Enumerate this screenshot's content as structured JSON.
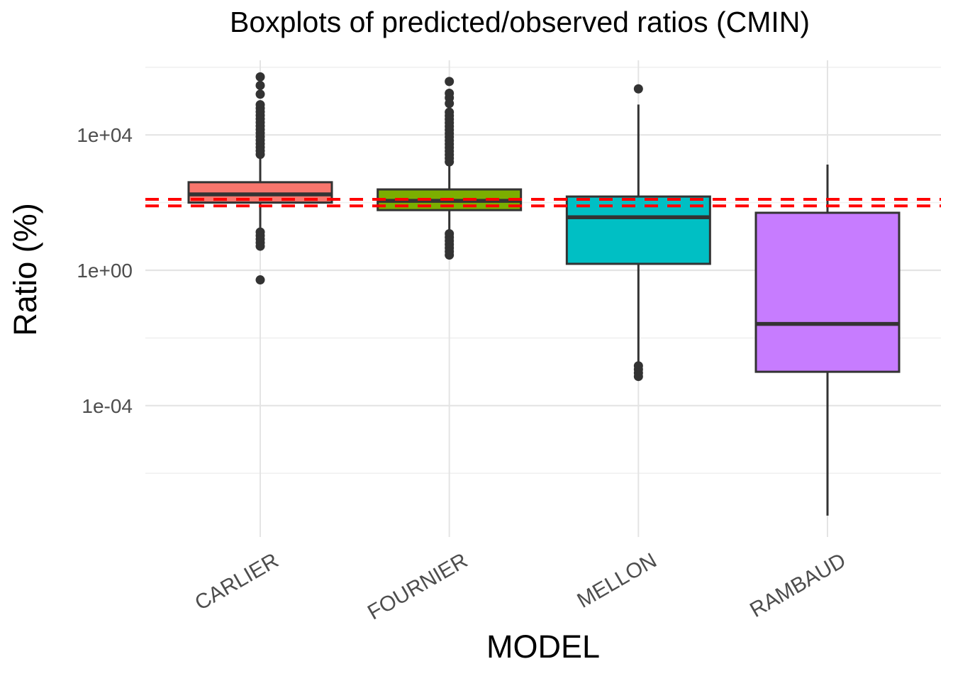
{
  "chart_data": {
    "type": "boxplot",
    "title": "Boxplots of predicted/observed ratios (CMIN)",
    "xlabel": "MODEL",
    "ylabel": "Ratio (%)",
    "y_scale": "log10",
    "y_ticks": [
      {
        "label": "1e+04",
        "value": 10000
      },
      {
        "label": "1e+00",
        "value": 1
      },
      {
        "label": "1e-04",
        "value": 0.0001
      }
    ],
    "y_minor_ticks": [
      1000000,
      100,
      0.01,
      1e-06
    ],
    "y_range_values": [
      3e-08,
      2000000.0
    ],
    "grid": "major-and-minor",
    "legend": "none",
    "categories": [
      "CARLIER",
      "FOURNIER",
      "MELLON",
      "RAMBAUD"
    ],
    "reference_lines": [
      {
        "value": 125,
        "color": "#FF0000",
        "style": "dashed"
      },
      {
        "value": 80,
        "color": "#FF0000",
        "style": "dashed"
      }
    ],
    "series": [
      {
        "name": "CARLIER",
        "fill": "#F8766D",
        "whisker_low": 15,
        "q1": 100,
        "median": 175,
        "q3": 400,
        "whisker_high": 2200,
        "outliers_high_points": [
          520000,
          290000,
          160000
        ],
        "outliers_high_range": [
          2400,
          78000
        ],
        "outliers_low_points": [
          0.52
        ],
        "outliers_low_range": [
          4.2,
          13.5
        ]
      },
      {
        "name": "FOURNIER",
        "fill": "#7CAE00",
        "whisker_low": 12.5,
        "q1": 60,
        "median": 113,
        "q3": 245,
        "whisker_high": 1300,
        "outliers_high_points": [
          380000,
          170000,
          125000,
          85000
        ],
        "outliers_high_range": [
          1400,
          47000
        ],
        "outliers_low_points": [],
        "outliers_low_range": [
          2.8,
          12
        ]
      },
      {
        "name": "MELLON",
        "fill": "#00BFC4",
        "whisker_low": 0.0017,
        "q1": 1.55,
        "median": 37,
        "q3": 151,
        "whisker_high": 79000,
        "outliers_high_points": [
          230000
        ],
        "outliers_high_range": null,
        "outliers_low_points": [],
        "outliers_low_range": [
          0.00065,
          0.0015
        ]
      },
      {
        "name": "RAMBAUD",
        "fill": "#C77CFF",
        "whisker_low": 5.6e-08,
        "q1": 0.001,
        "median": 0.026,
        "q3": 50,
        "whisker_high": 1330,
        "outliers_high_points": [],
        "outliers_high_range": null,
        "outliers_low_points": [],
        "outliers_low_range": null
      }
    ]
  },
  "style": {
    "background": "#FFFFFF",
    "grid_major_color": "#E4E4E4",
    "grid_minor_color": "#F0F0F0",
    "box_border_color": "#333333",
    "outlier_color": "#333333",
    "axis_text_color": "#4D4D4D",
    "title_color": "#000000",
    "axis_title_color": "#000000"
  }
}
